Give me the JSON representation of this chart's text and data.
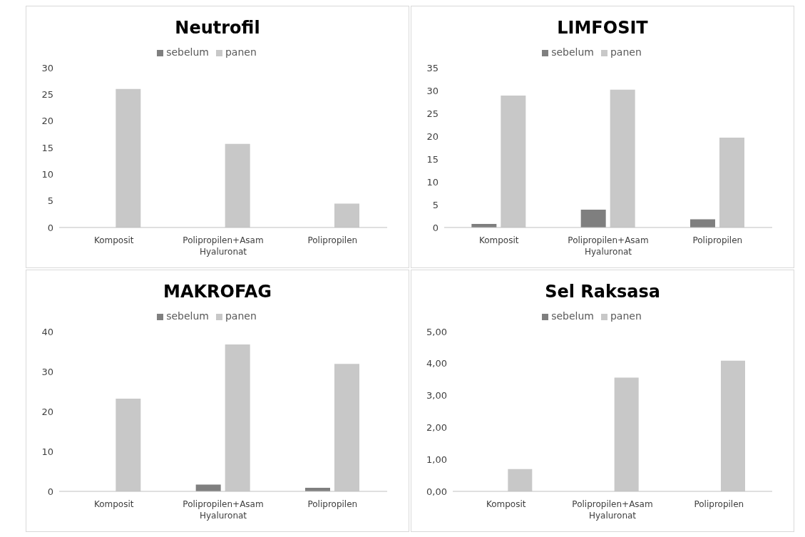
{
  "chart_data": [
    {
      "type": "bar",
      "title": "Neutrofil",
      "categories": [
        "Komposit",
        "Polipropilen+Asam Hyaluronat",
        "Polipropilen"
      ],
      "series": [
        {
          "name": "sebelum",
          "color": "#7f7f7f",
          "values": [
            0,
            0,
            0
          ]
        },
        {
          "name": "panen",
          "color": "#c8c8c8",
          "values": [
            26,
            15.7,
            4.5
          ]
        }
      ],
      "ylim": [
        0,
        30
      ],
      "yticks": [
        0,
        5,
        10,
        15,
        20,
        25,
        30
      ],
      "grid": false,
      "legend": "top"
    },
    {
      "type": "bar",
      "title": "LIMFOSIT",
      "categories": [
        "Komposit",
        "Polipropilen+Asam Hyaluronat",
        "Polipropilen"
      ],
      "series": [
        {
          "name": "sebelum",
          "color": "#7f7f7f",
          "values": [
            0.8,
            3.9,
            1.8
          ]
        },
        {
          "name": "panen",
          "color": "#c8c8c8",
          "values": [
            28.9,
            30.2,
            19.7
          ]
        }
      ],
      "ylim": [
        0,
        35
      ],
      "yticks": [
        0,
        5,
        10,
        15,
        20,
        25,
        30,
        35
      ],
      "grid": false,
      "legend": "top"
    },
    {
      "type": "bar",
      "title": "MAKROFAG",
      "categories": [
        "Komposit",
        "Polipropilen+Asam Hyaluronat",
        "Polipropilen"
      ],
      "series": [
        {
          "name": "sebelum",
          "color": "#7f7f7f",
          "values": [
            0,
            1.7,
            0.9
          ]
        },
        {
          "name": "panen",
          "color": "#c8c8c8",
          "values": [
            23.2,
            36.8,
            31.9
          ]
        }
      ],
      "ylim": [
        0,
        40
      ],
      "yticks": [
        0,
        10,
        20,
        30,
        40
      ],
      "grid": false,
      "legend": "top"
    },
    {
      "type": "bar",
      "title": "Sel Raksasa",
      "categories": [
        "Komposit",
        "Polipropilen+Asam Hyaluronat",
        "Polipropilen"
      ],
      "series": [
        {
          "name": "sebelum",
          "color": "#7f7f7f",
          "values": [
            0,
            0,
            0
          ]
        },
        {
          "name": "panen",
          "color": "#c8c8c8",
          "values": [
            0.7,
            3.56,
            4.09
          ]
        }
      ],
      "ylim": [
        0,
        5
      ],
      "yticks": [
        {
          "value": 0,
          "label": "0,00"
        },
        {
          "value": 1,
          "label": "1,00"
        },
        {
          "value": 2,
          "label": "2,00"
        },
        {
          "value": 3,
          "label": "3,00"
        },
        {
          "value": 4,
          "label": "4,00"
        },
        {
          "value": 5,
          "label": "5,00"
        }
      ],
      "grid": false,
      "legend": "top"
    }
  ]
}
